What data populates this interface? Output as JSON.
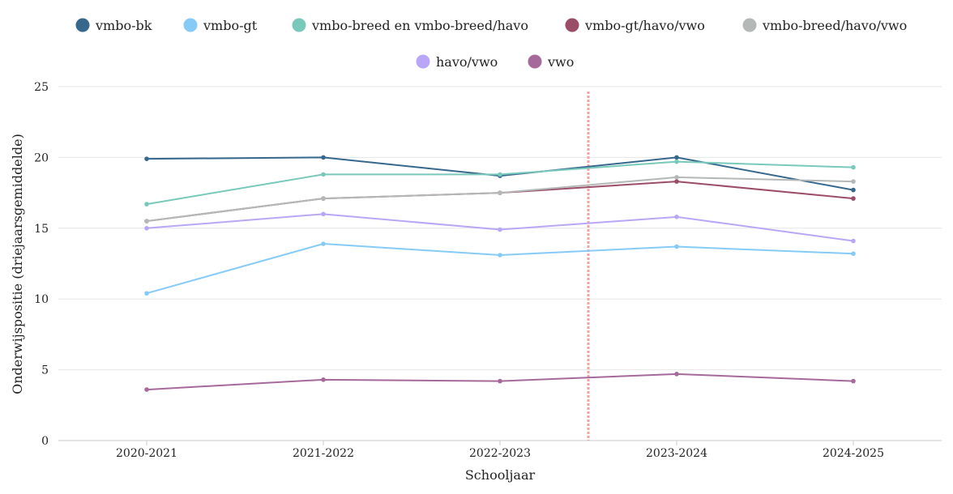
{
  "chart_data": {
    "type": "line",
    "xlabel": "Schooljaar",
    "ylabel": "Onderwijspositie (driejaarsgemiddelde)",
    "categories": [
      "2020-2021",
      "2021-2022",
      "2022-2023",
      "2023-2024",
      "2024-2025"
    ],
    "ylim": [
      0,
      25
    ],
    "yticks": [
      0,
      5,
      10,
      15,
      20,
      25
    ],
    "grid": true,
    "legend_position": "top",
    "reference_line": {
      "between": [
        "2022-2023",
        "2023-2024"
      ],
      "style": "dotted",
      "color": "#f4a3a3"
    },
    "series": [
      {
        "name": "vmbo-bk",
        "color": "#36688e",
        "values": [
          19.9,
          20.0,
          18.7,
          20.0,
          17.7
        ]
      },
      {
        "name": "vmbo-gt",
        "color": "#86cbf7",
        "values": [
          10.4,
          13.9,
          13.1,
          13.7,
          13.2
        ]
      },
      {
        "name": "vmbo-breed en vmbo-breed/havo",
        "color": "#78c9bc",
        "values": [
          16.7,
          18.8,
          18.8,
          19.7,
          19.3
        ]
      },
      {
        "name": "vmbo-gt/havo/vwo",
        "color": "#9b4d68",
        "values": [
          15.5,
          17.1,
          17.5,
          18.3,
          17.1
        ]
      },
      {
        "name": "vmbo-breed/havo/vwo",
        "color": "#b4b8b6",
        "values": [
          15.5,
          17.1,
          17.5,
          18.6,
          18.3
        ]
      },
      {
        "name": "havo/vwo",
        "color": "#b9a6f6",
        "values": [
          15.0,
          16.0,
          14.9,
          15.8,
          14.1
        ]
      },
      {
        "name": "vwo",
        "color": "#a66a9a",
        "values": [
          3.6,
          4.3,
          4.2,
          4.7,
          4.2
        ]
      }
    ]
  }
}
